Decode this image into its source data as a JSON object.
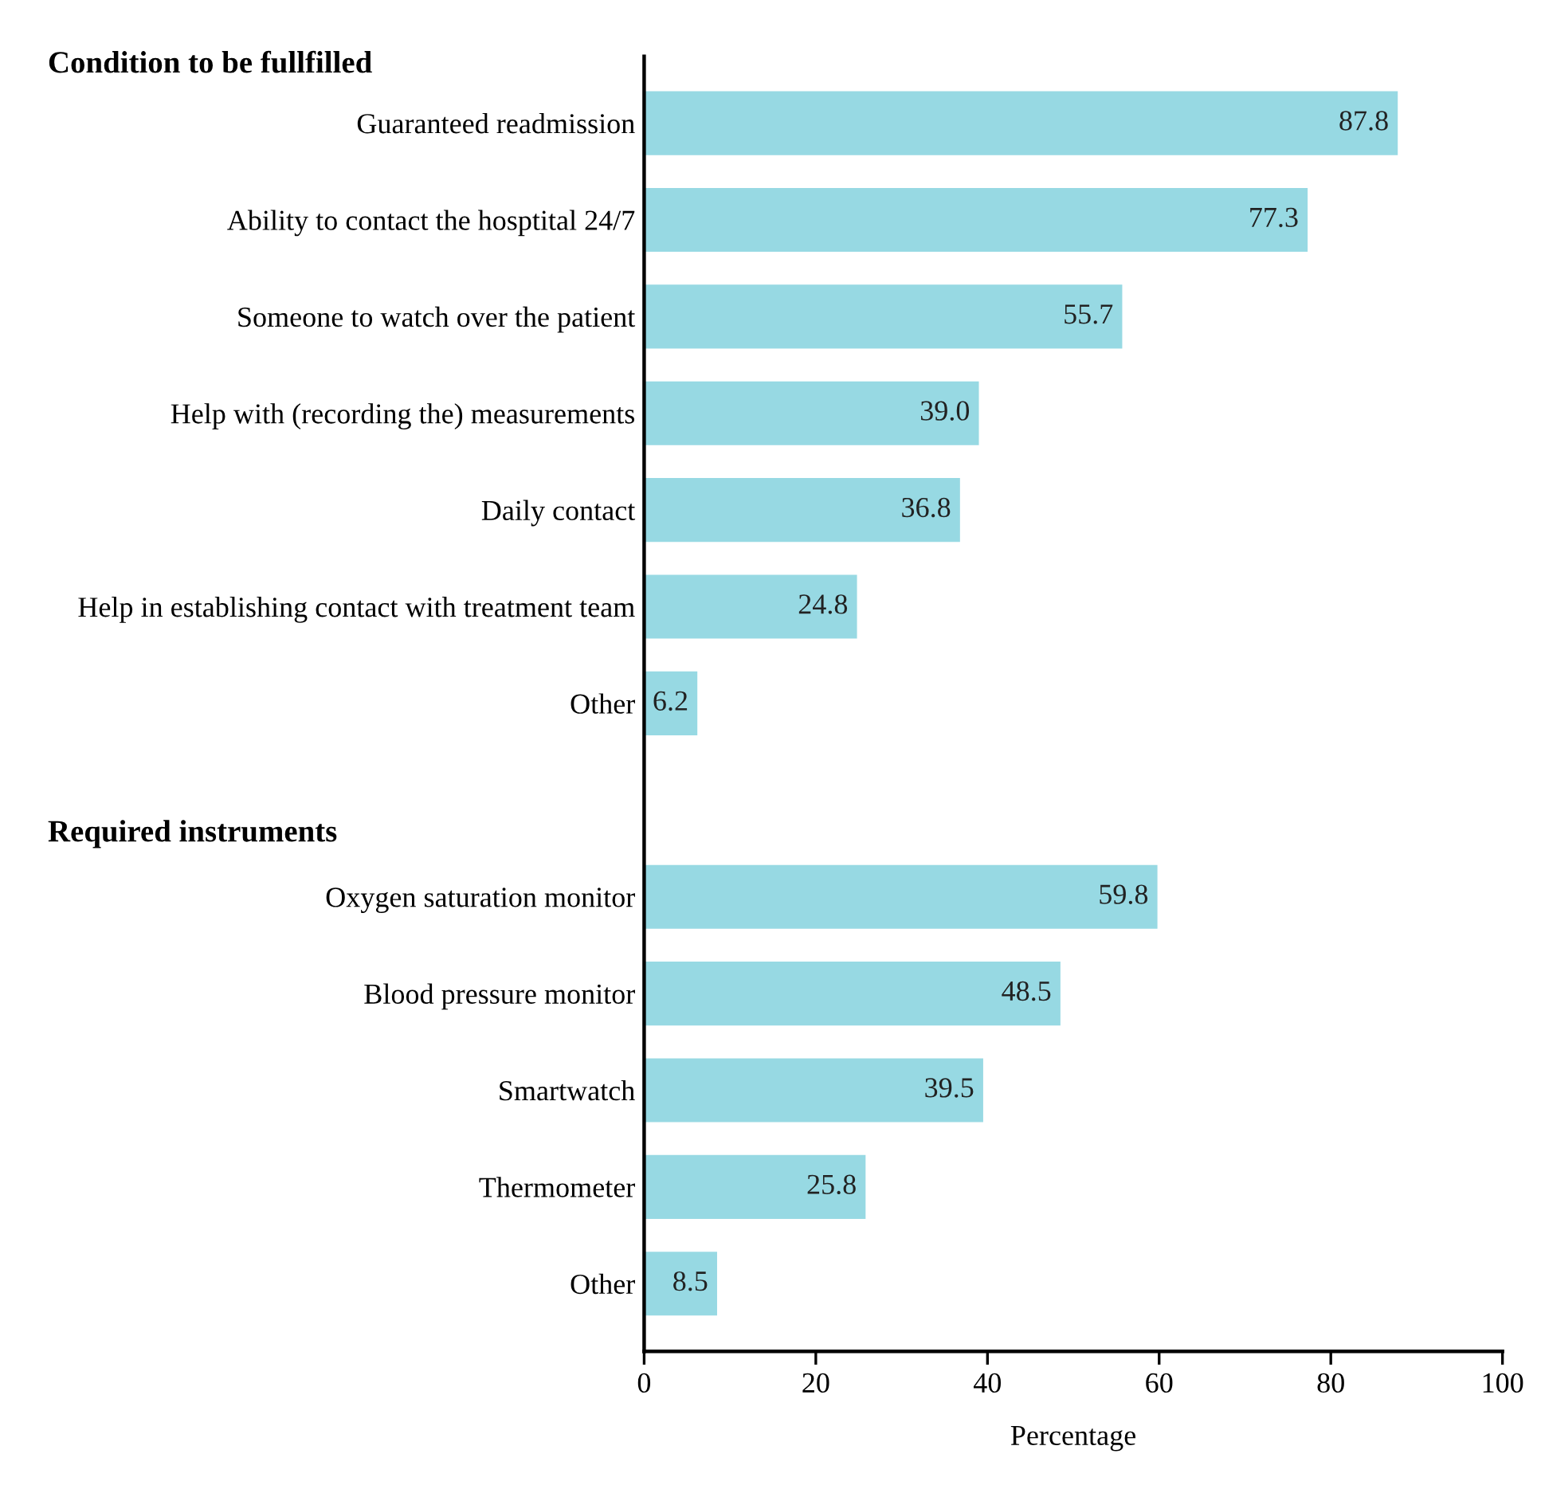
{
  "chart_data": {
    "type": "bar",
    "orientation": "horizontal",
    "xlabel": "Percentage",
    "categories": [
      "Guaranteed readmission",
      "Ability to contact the hosptital 24/7",
      "Someone to watch over the patient",
      "Help with (recording the) measurements",
      "Daily contact",
      "Help in establishing contact with treatment team",
      "Other",
      null,
      "Oxygen saturation monitor",
      "Blood pressure monitor",
      "Smartwatch",
      "Thermometer",
      "Other"
    ],
    "values": [
      87.8,
      77.3,
      55.7,
      39.0,
      36.8,
      24.8,
      6.2,
      null,
      59.8,
      48.5,
      39.5,
      25.8,
      8.5
    ],
    "color": "#97d9e3",
    "value_labels": [
      "87.8",
      "77.3",
      "55.7",
      "39.0",
      "36.8",
      "24.8",
      "6.2",
      null,
      "59.8",
      "48.5",
      "39.5",
      "25.8",
      "8.5"
    ],
    "xlim": [
      0,
      100
    ],
    "xticks": [
      0,
      20,
      40,
      60,
      80,
      100
    ],
    "grid": false,
    "annotations": [
      "Condition to be fullfilled",
      "Required instruments"
    ]
  }
}
